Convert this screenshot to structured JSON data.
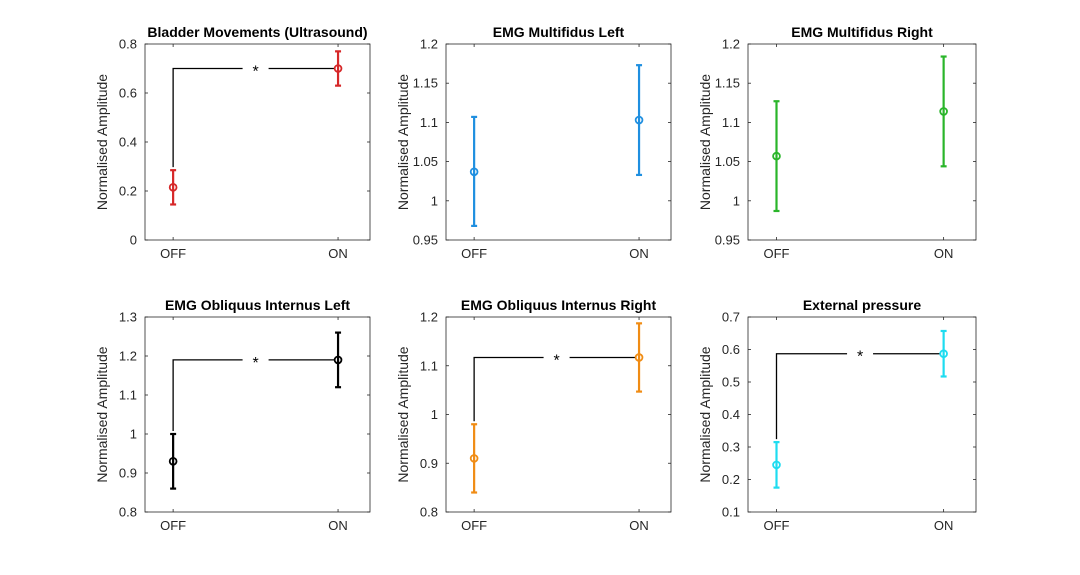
{
  "chart_data": [
    {
      "type": "errorbar",
      "title": "Bladder Movements (Ultrasound)",
      "xlabel": "",
      "ylabel": "Normalised Amplitude",
      "categories": [
        "OFF",
        "ON"
      ],
      "ylim": [
        0,
        0.8
      ],
      "yticks": [
        0,
        0.2,
        0.4,
        0.6,
        0.8
      ],
      "ytick_labels": [
        "0",
        "0.2",
        "0.4",
        "0.6",
        "0.8"
      ],
      "color": "#d62728",
      "values": [
        0.215,
        0.7
      ],
      "lower": [
        0.145,
        0.63
      ],
      "upper": [
        0.285,
        0.77
      ],
      "significance": "*"
    },
    {
      "type": "errorbar",
      "title": "EMG Multifidus Left",
      "xlabel": "",
      "ylabel": "Normalised Amplitude",
      "categories": [
        "OFF",
        "ON"
      ],
      "ylim": [
        0.95,
        1.2
      ],
      "yticks": [
        0.95,
        1,
        1.05,
        1.1,
        1.15,
        1.2
      ],
      "ytick_labels": [
        "0.95",
        "1",
        "1.05",
        "1.1",
        "1.15",
        "1.2"
      ],
      "color": "#1f8fe0",
      "values": [
        1.037,
        1.103
      ],
      "lower": [
        0.968,
        1.033
      ],
      "upper": [
        1.107,
        1.173
      ],
      "significance": ""
    },
    {
      "type": "errorbar",
      "title": "EMG Multifidus Right",
      "xlabel": "",
      "ylabel": "Normalised Amplitude",
      "categories": [
        "OFF",
        "ON"
      ],
      "ylim": [
        0.95,
        1.2
      ],
      "yticks": [
        0.95,
        1,
        1.05,
        1.1,
        1.15,
        1.2
      ],
      "ytick_labels": [
        "0.95",
        "1",
        "1.05",
        "1.1",
        "1.15",
        "1.2"
      ],
      "color": "#2ab52a",
      "values": [
        1.057,
        1.114
      ],
      "lower": [
        0.987,
        1.044
      ],
      "upper": [
        1.127,
        1.184
      ],
      "significance": ""
    },
    {
      "type": "errorbar",
      "title": "EMG Obliquus Internus Left",
      "xlabel": "",
      "ylabel": "Normalised Amplitude",
      "categories": [
        "OFF",
        "ON"
      ],
      "ylim": [
        0.8,
        1.3
      ],
      "yticks": [
        0.8,
        0.9,
        1,
        1.1,
        1.2,
        1.3
      ],
      "ytick_labels": [
        "0.8",
        "0.9",
        "1",
        "1.1",
        "1.2",
        "1.3"
      ],
      "color": "#000000",
      "values": [
        0.93,
        1.19
      ],
      "lower": [
        0.86,
        1.12
      ],
      "upper": [
        1.0,
        1.26
      ],
      "significance": "*"
    },
    {
      "type": "errorbar",
      "title": "EMG Obliquus Internus Right",
      "xlabel": "",
      "ylabel": "Normalised Amplitude",
      "categories": [
        "OFF",
        "ON"
      ],
      "ylim": [
        0.8,
        1.2
      ],
      "yticks": [
        0.8,
        0.9,
        1,
        1.1,
        1.2
      ],
      "ytick_labels": [
        "0.8",
        "0.9",
        "1",
        "1.1",
        "1.2"
      ],
      "color": "#f08c14",
      "values": [
        0.91,
        1.117
      ],
      "lower": [
        0.84,
        1.047
      ],
      "upper": [
        0.98,
        1.187
      ],
      "significance": "*"
    },
    {
      "type": "errorbar",
      "title": "External pressure",
      "xlabel": "",
      "ylabel": "Normalised Amplitude",
      "categories": [
        "OFF",
        "ON"
      ],
      "ylim": [
        0.1,
        0.7
      ],
      "yticks": [
        0.1,
        0.2,
        0.3,
        0.4,
        0.5,
        0.6,
        0.7
      ],
      "ytick_labels": [
        "0.1",
        "0.2",
        "0.3",
        "0.4",
        "0.5",
        "0.6",
        "0.7"
      ],
      "color": "#1edcf0",
      "values": [
        0.245,
        0.587
      ],
      "lower": [
        0.175,
        0.517
      ],
      "upper": [
        0.315,
        0.657
      ],
      "significance": "*"
    }
  ]
}
